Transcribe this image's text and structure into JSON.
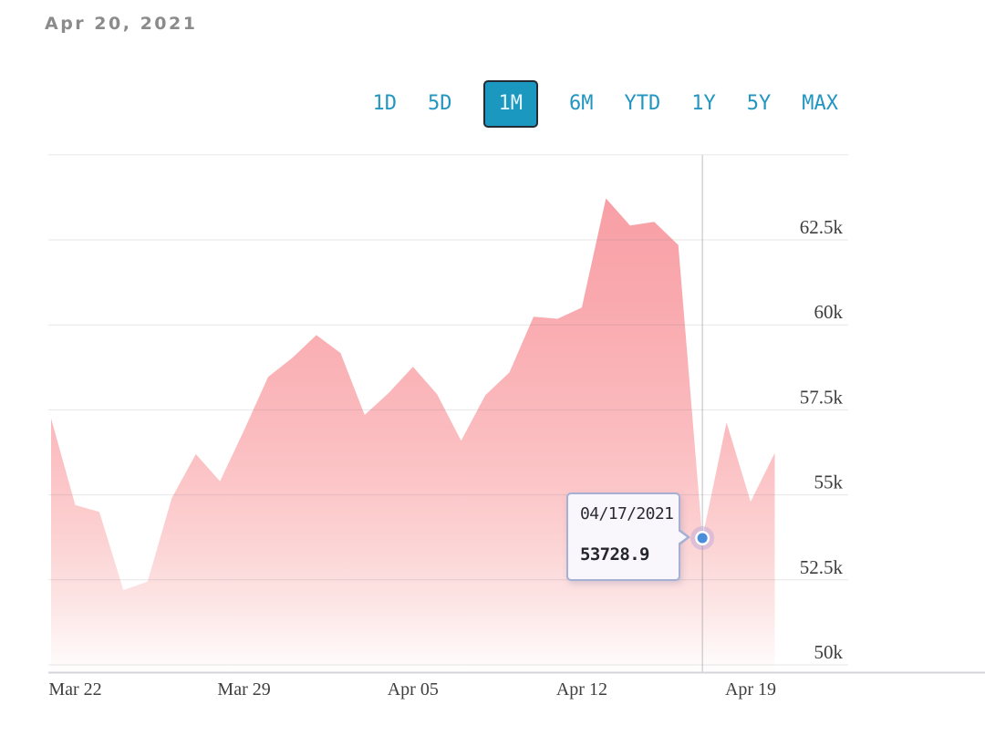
{
  "header": {
    "date_label": "Apr 20, 2021"
  },
  "range_selector": {
    "options": [
      "1D",
      "5D",
      "1M",
      "6M",
      "YTD",
      "1Y",
      "5Y",
      "MAX"
    ],
    "selected": "1M"
  },
  "tooltip": {
    "date": "04/17/2021",
    "value": "53728.9"
  },
  "colors": {
    "accent_teal": "#2296c1",
    "selected_button_bg": "#1b98bf",
    "selected_button_border": "#232c34",
    "selected_button_text": "#e3f2fb",
    "date_label_gray": "#8b8b8b",
    "gridline": "rgba(115,115,130,0.17)",
    "axis_line": "rgba(115,115,130,0.30)",
    "crosshair": "rgba(85,90,100,0.38)",
    "dot": "#4a8edb",
    "halo": "rgba(158,148,220,0.33)",
    "tooltip_border": "#a6b0d4",
    "tooltip_bg": "#f9f7fc",
    "area_gradient": [
      [
        "0%",
        "#f89ba2"
      ],
      [
        "28%",
        "#f9a9ae"
      ],
      [
        "55%",
        "#fbbdc0"
      ],
      [
        "72%",
        "#fccfd0"
      ],
      [
        "88%",
        "#fde7e7"
      ],
      [
        "100%",
        "#fffefe"
      ]
    ]
  },
  "chart_data": {
    "type": "area",
    "title": "",
    "xlabel": "",
    "ylabel": "",
    "legend": "none",
    "grid": "horizontal",
    "x": [
      "Mar 21",
      "Mar 22",
      "Mar 23",
      "Mar 24",
      "Mar 25",
      "Mar 26",
      "Mar 27",
      "Mar 28",
      "Mar 29",
      "Mar 30",
      "Mar 31",
      "Apr 01",
      "Apr 02",
      "Apr 03",
      "Apr 04",
      "Apr 05",
      "Apr 06",
      "Apr 07",
      "Apr 08",
      "Apr 09",
      "Apr 10",
      "Apr 11",
      "Apr 12",
      "Apr 13",
      "Apr 14",
      "Apr 15",
      "Apr 16",
      "Apr 17",
      "Apr 18",
      "Apr 19",
      "Apr 20"
    ],
    "values": [
      57250,
      54700,
      54500,
      52200,
      52450,
      54900,
      56200,
      55400,
      56900,
      58470,
      59030,
      59700,
      59170,
      57350,
      58000,
      58770,
      57960,
      56590,
      57930,
      58600,
      60240,
      60180,
      60510,
      63720,
      62920,
      63030,
      62350,
      53728.9,
      57130,
      54800,
      56230
    ],
    "ylim": [
      50000,
      65000
    ],
    "y_axis": {
      "side": "right",
      "gridlines": [
        50000,
        52500,
        55000,
        57500,
        60000,
        62500,
        65000
      ],
      "ticks": [
        {
          "value": 62500,
          "label": "62.5k"
        },
        {
          "value": 60000,
          "label": "60k"
        },
        {
          "value": 57500,
          "label": "57.5k"
        },
        {
          "value": 55000,
          "label": "55k"
        },
        {
          "value": 52500,
          "label": "52.5k"
        },
        {
          "value": 50000,
          "label": "50k"
        }
      ]
    },
    "x_axis": {
      "ticks": [
        {
          "index": 1,
          "label": "Mar 22"
        },
        {
          "index": 8,
          "label": "Mar 29"
        },
        {
          "index": 15,
          "label": "Apr 05"
        },
        {
          "index": 22,
          "label": "Apr 12"
        },
        {
          "index": 29,
          "label": "Apr 19"
        }
      ]
    },
    "highlight": {
      "index": 27,
      "date": "04/17/2021",
      "value": 53728.9
    }
  }
}
